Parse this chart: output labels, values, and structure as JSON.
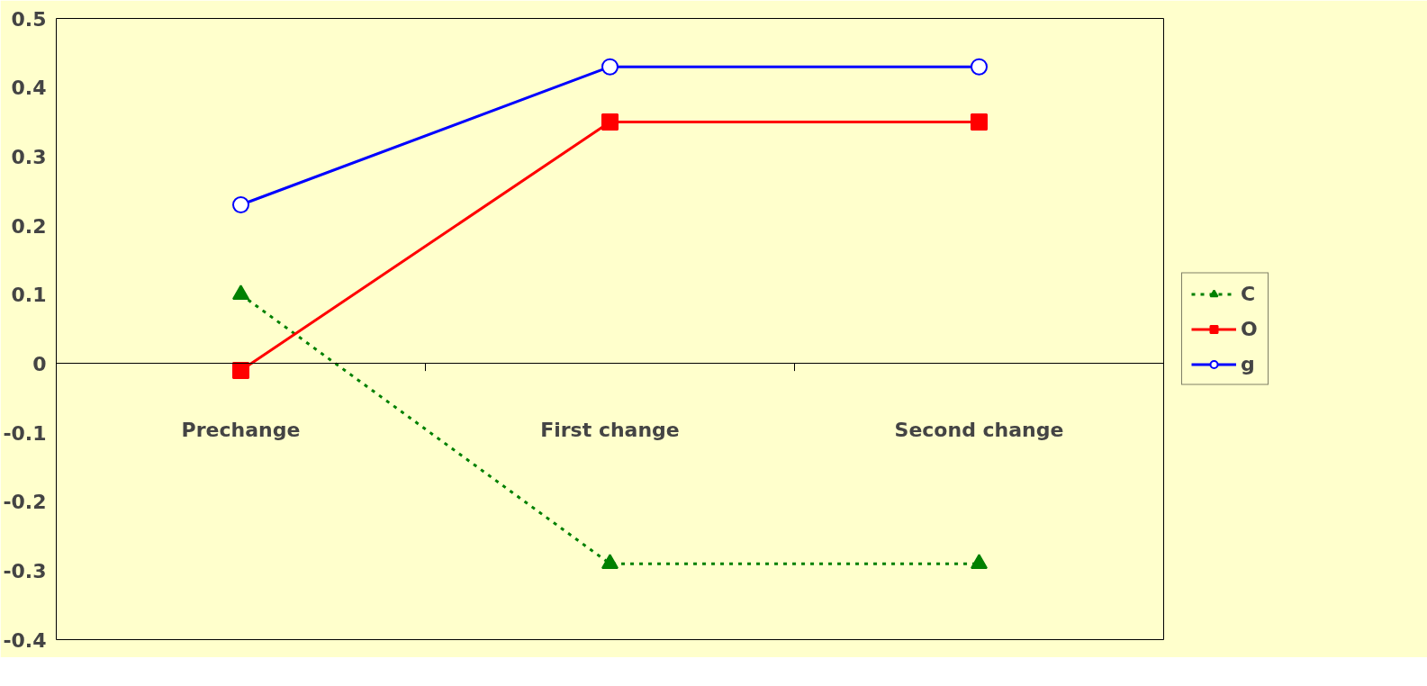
{
  "chart_data": {
    "type": "line",
    "categories": [
      "Prechange",
      "First change",
      "Second change"
    ],
    "series": [
      {
        "name": "C",
        "color": "#008000",
        "marker": "triangle",
        "line_style": "dotted",
        "values": [
          0.1,
          -0.29,
          -0.29
        ]
      },
      {
        "name": "O",
        "color": "#ff0000",
        "marker": "square",
        "line_style": "solid",
        "values": [
          -0.01,
          0.35,
          0.35
        ]
      },
      {
        "name": "g",
        "color": "#0000ff",
        "marker": "circle",
        "line_style": "solid",
        "values": [
          0.23,
          0.43,
          0.43
        ]
      }
    ],
    "ylim": [
      -0.4,
      0.5
    ],
    "yticks": [
      -0.4,
      -0.3,
      -0.2,
      -0.1,
      0,
      0.1,
      0.2,
      0.3,
      0.4,
      0.5
    ],
    "legend": "right"
  }
}
